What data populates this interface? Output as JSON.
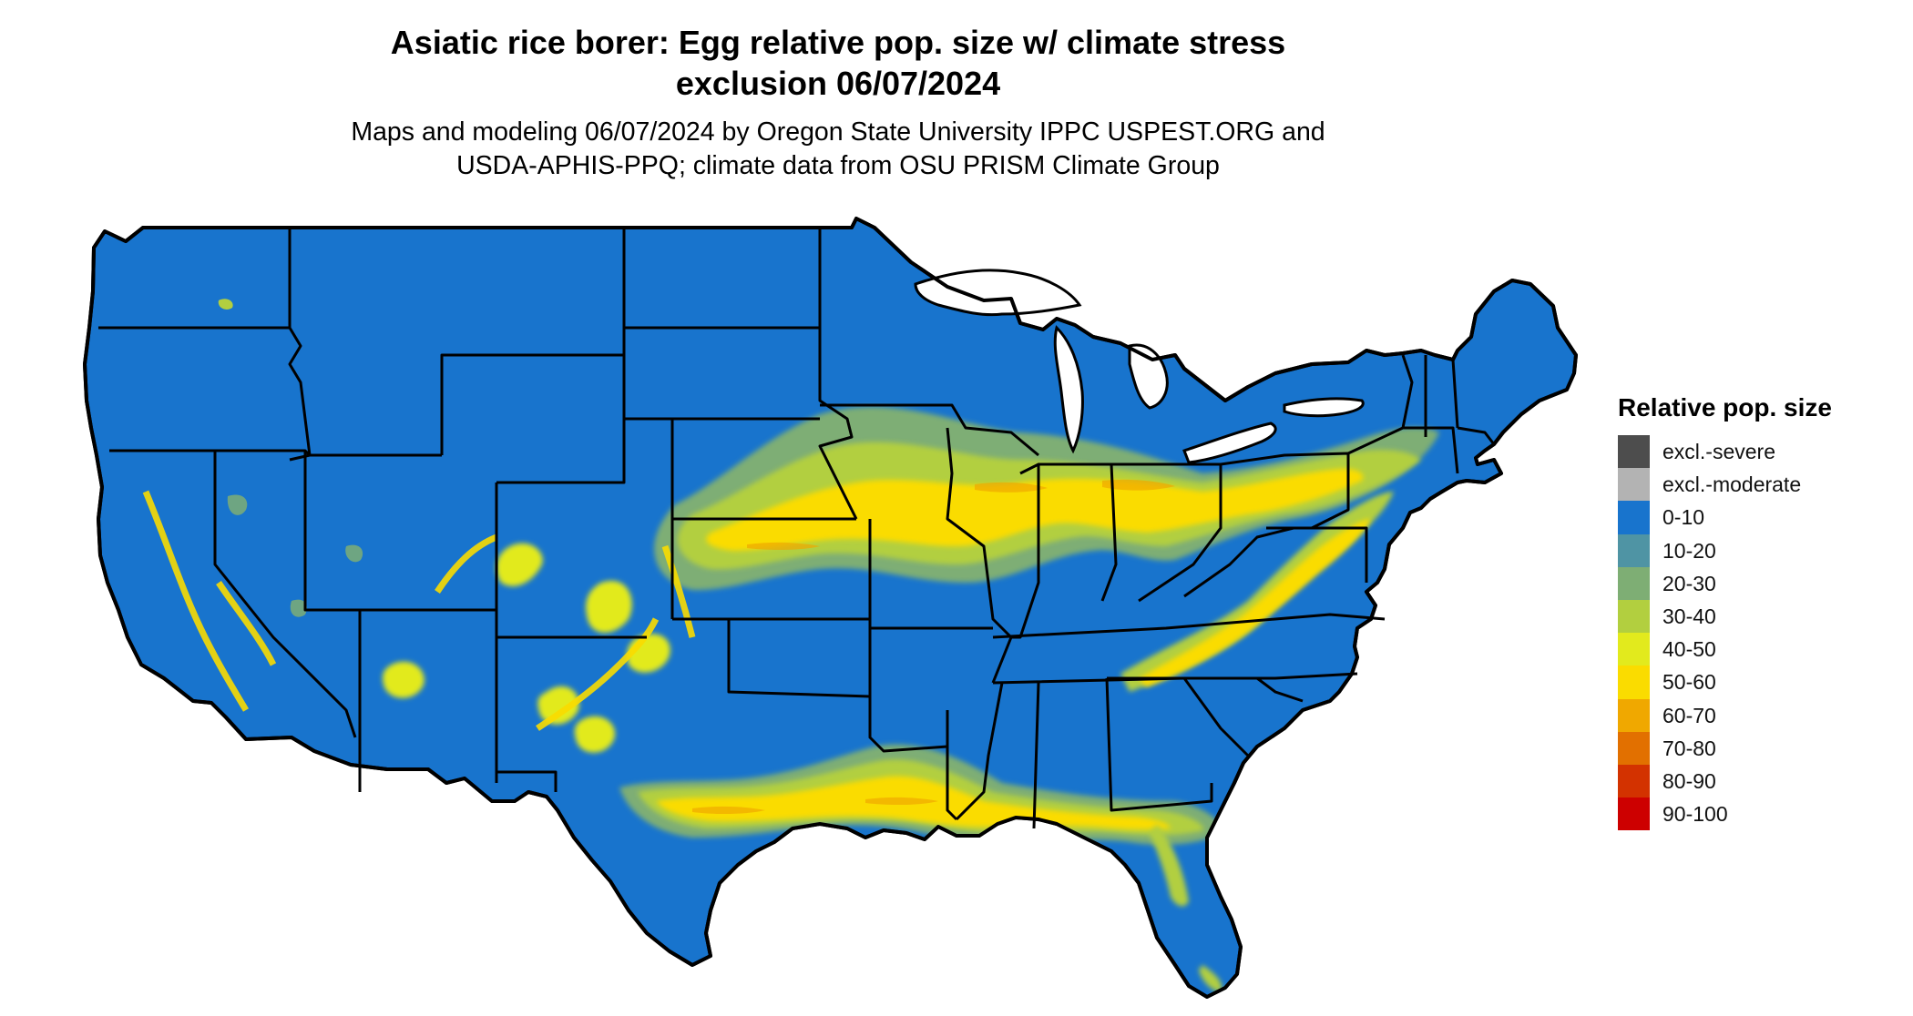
{
  "header": {
    "title_line1": "Asiatic rice borer: Egg relative pop. size w/ climate stress",
    "title_line2": "exclusion 06/07/2024",
    "subtitle_line1": "Maps and modeling 06/07/2024 by Oregon State University IPPC USPEST.ORG and",
    "subtitle_line2": "USDA-APHIS-PPQ; climate data from OSU PRISM Climate Group"
  },
  "legend": {
    "title": "Relative pop. size",
    "items": [
      {
        "label": "excl.-severe",
        "color": "#4d4d4d"
      },
      {
        "label": "excl.-moderate",
        "color": "#b3b3b3"
      },
      {
        "label": "0-10",
        "color": "#1874cd"
      },
      {
        "label": "10-20",
        "color": "#4f94a4"
      },
      {
        "label": "20-30",
        "color": "#7eae74"
      },
      {
        "label": "30-40",
        "color": "#b2cf3f"
      },
      {
        "label": "40-50",
        "color": "#e2ea1d"
      },
      {
        "label": "50-60",
        "color": "#fadc00"
      },
      {
        "label": "60-70",
        "color": "#f0a800"
      },
      {
        "label": "70-80",
        "color": "#e27000"
      },
      {
        "label": "80-90",
        "color": "#d33200"
      },
      {
        "label": "90-100",
        "color": "#cd0000"
      }
    ]
  },
  "map": {
    "region": "conterminous-united-states",
    "base_fill": "#1874cd",
    "border_color": "#000000"
  }
}
